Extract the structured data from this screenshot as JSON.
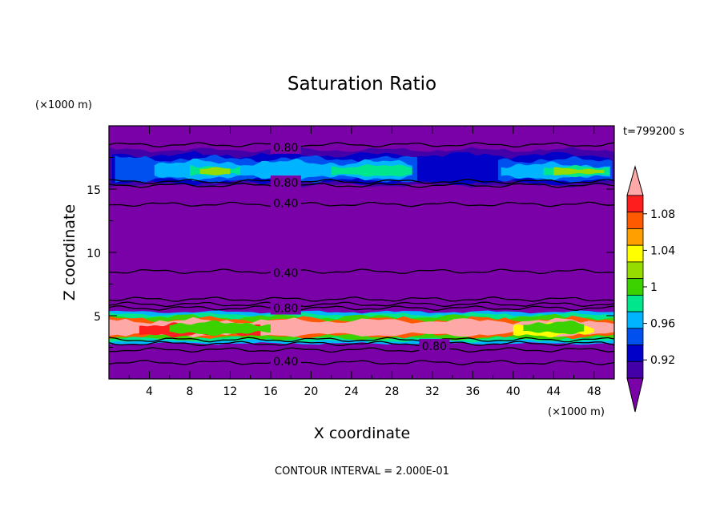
{
  "chart_data": {
    "type": "heatmap",
    "title": "Saturation Ratio",
    "xlabel": "X coordinate",
    "ylabel": "Z coordinate",
    "x_unit": "(×1000 m)",
    "y_unit": "(×1000 m)",
    "time_label": "t=799200 s",
    "footer": "CONTOUR INTERVAL = 2.000E-01",
    "xlim": [
      0,
      50
    ],
    "ylim": [
      0,
      20
    ],
    "x_ticks": [
      "4",
      "8",
      "12",
      "16",
      "20",
      "24",
      "28",
      "32",
      "36",
      "40",
      "44",
      "48"
    ],
    "y_ticks": [
      "5",
      "10",
      "15"
    ],
    "grid": false,
    "background_color": "#7a00a8",
    "colorbar": {
      "tick_labels": [
        "0.92",
        "0.96",
        "1",
        "1.04",
        "1.08"
      ],
      "levels": [
        0.9,
        0.92,
        0.94,
        0.96,
        0.98,
        1.0,
        1.02,
        1.04,
        1.06,
        1.08,
        1.1
      ],
      "colors": [
        "#7a00a8",
        "#4400a8",
        "#0000c8",
        "#0050f0",
        "#00b4ff",
        "#00e68c",
        "#3cd200",
        "#96dc00",
        "#ffff00",
        "#ffa000",
        "#ff5a00",
        "#ff1e1e",
        "#ffa8a8"
      ]
    },
    "contour_labels": [
      {
        "text": "0.80",
        "x": 17.5,
        "z": 18.3
      },
      {
        "text": "0.80",
        "x": 17.5,
        "z": 15.5
      },
      {
        "text": "0.40",
        "x": 17.5,
        "z": 13.9
      },
      {
        "text": "0.40",
        "x": 17.5,
        "z": 8.4
      },
      {
        "text": "0.80",
        "x": 17.5,
        "z": 5.6
      },
      {
        "text": "0.80",
        "x": 32.2,
        "z": 2.6
      },
      {
        "text": "0.40",
        "x": 17.5,
        "z": 1.4
      }
    ],
    "contour_lines_z": [
      18.5,
      15.6,
      15.3,
      13.8,
      8.5,
      6.3,
      5.9,
      5.6,
      3.1,
      2.8,
      2.3,
      1.3
    ]
  }
}
